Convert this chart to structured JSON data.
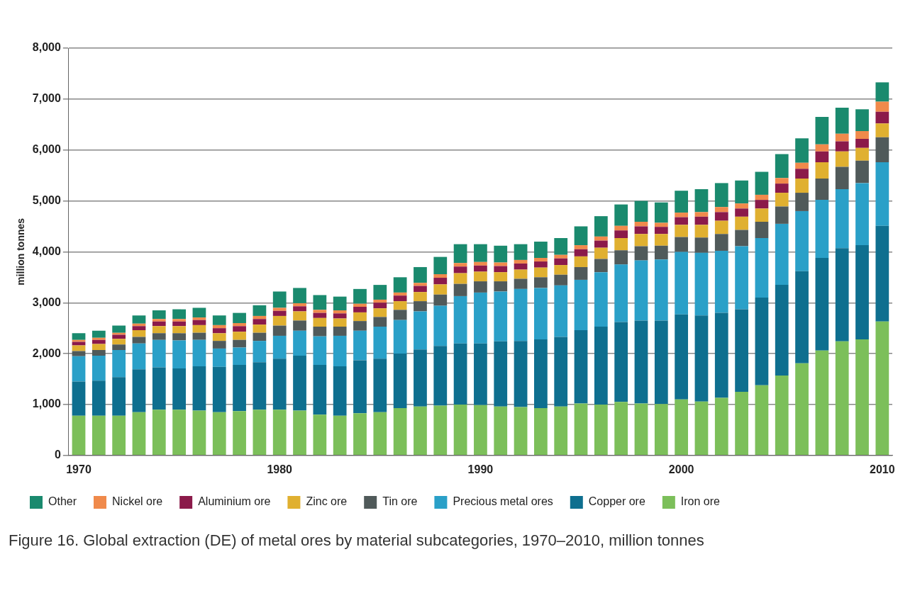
{
  "chart_data": {
    "type": "bar",
    "stacked": true,
    "ylabel": "million tonnes",
    "categories": [
      "1970",
      null,
      null,
      null,
      null,
      null,
      null,
      null,
      null,
      null,
      "1980",
      null,
      null,
      null,
      null,
      null,
      null,
      null,
      null,
      null,
      "1990",
      null,
      null,
      null,
      null,
      null,
      null,
      null,
      null,
      null,
      "2000",
      null,
      null,
      null,
      null,
      null,
      null,
      null,
      null,
      null,
      "2010"
    ],
    "ylim": [
      0,
      8000
    ],
    "yticks": [
      {
        "value": 0,
        "label": "0"
      },
      {
        "value": 1000,
        "label": "1,000"
      },
      {
        "value": 2000,
        "label": "2,000"
      },
      {
        "value": 3000,
        "label": "3,000"
      },
      {
        "value": 4000,
        "label": "4,000"
      },
      {
        "value": 5000,
        "label": "5,000"
      },
      {
        "value": 6000,
        "label": "6,000"
      },
      {
        "value": 7000,
        "label": "7,000"
      },
      {
        "value": 8000,
        "label": "8,000"
      }
    ],
    "grid": "y",
    "legend": "bottom",
    "series": [
      {
        "name": "Iron ore",
        "color": "#7cbf5a",
        "values": [
          780,
          780,
          780,
          850,
          900,
          900,
          880,
          850,
          870,
          900,
          900,
          880,
          800,
          780,
          830,
          850,
          930,
          960,
          980,
          1000,
          990,
          960,
          950,
          930,
          960,
          1020,
          1000,
          1050,
          1020,
          1010,
          1100,
          1060,
          1130,
          1250,
          1380,
          1570,
          1810,
          2060,
          2240,
          2280,
          2630
        ]
      },
      {
        "name": "Copper ore",
        "color": "#0e6f8f",
        "values": [
          670,
          690,
          760,
          840,
          830,
          810,
          870,
          890,
          910,
          930,
          1000,
          1080,
          980,
          970,
          1040,
          1050,
          1070,
          1120,
          1170,
          1200,
          1210,
          1280,
          1300,
          1350,
          1370,
          1440,
          1530,
          1570,
          1630,
          1640,
          1670,
          1690,
          1670,
          1620,
          1720,
          1780,
          1810,
          1820,
          1830,
          1850,
          1880
        ]
      },
      {
        "name": "Precious metal ores",
        "color": "#2aa0c8",
        "values": [
          500,
          490,
          530,
          510,
          540,
          550,
          520,
          360,
          340,
          420,
          450,
          490,
          560,
          600,
          580,
          630,
          660,
          750,
          790,
          930,
          1000,
          980,
          1020,
          1010,
          1010,
          990,
          1070,
          1130,
          1180,
          1200,
          1230,
          1230,
          1220,
          1240,
          1170,
          1200,
          1180,
          1140,
          1160,
          1220,
          1250
        ]
      },
      {
        "name": "Tin ore",
        "color": "#505a5a",
        "values": [
          100,
          110,
          110,
          130,
          130,
          140,
          140,
          150,
          150,
          160,
          200,
          200,
          190,
          180,
          190,
          190,
          200,
          200,
          220,
          240,
          220,
          200,
          200,
          210,
          210,
          250,
          260,
          280,
          280,
          270,
          290,
          300,
          330,
          320,
          320,
          340,
          360,
          420,
          440,
          440,
          490
        ]
      },
      {
        "name": "Zinc ore",
        "color": "#e0b030",
        "values": [
          110,
          120,
          110,
          130,
          140,
          140,
          150,
          150,
          160,
          160,
          190,
          180,
          170,
          160,
          170,
          170,
          170,
          180,
          200,
          210,
          190,
          180,
          180,
          190,
          190,
          210,
          220,
          240,
          240,
          230,
          240,
          250,
          260,
          260,
          260,
          270,
          280,
          320,
          300,
          250,
          270
        ]
      },
      {
        "name": "Aluminium ore",
        "color": "#8b1a4a",
        "values": [
          70,
          80,
          80,
          80,
          90,
          90,
          100,
          100,
          110,
          110,
          100,
          100,
          100,
          100,
          110,
          110,
          110,
          120,
          130,
          130,
          120,
          120,
          120,
          120,
          130,
          140,
          140,
          150,
          150,
          140,
          150,
          160,
          170,
          160,
          170,
          180,
          190,
          210,
          200,
          180,
          230
        ]
      },
      {
        "name": "Nickel ore",
        "color": "#f08a4b",
        "values": [
          40,
          40,
          40,
          50,
          50,
          50,
          50,
          60,
          60,
          60,
          60,
          60,
          60,
          60,
          60,
          60,
          60,
          60,
          70,
          70,
          70,
          70,
          70,
          70,
          70,
          80,
          80,
          90,
          90,
          80,
          90,
          90,
          100,
          100,
          100,
          110,
          120,
          140,
          150,
          150,
          200
        ]
      },
      {
        "name": "Other",
        "color": "#1a8a6e",
        "values": [
          130,
          140,
          140,
          160,
          170,
          190,
          190,
          190,
          200,
          210,
          320,
          300,
          290,
          270,
          290,
          290,
          300,
          310,
          340,
          370,
          350,
          330,
          310,
          320,
          330,
          370,
          400,
          420,
          410,
          400,
          430,
          450,
          470,
          450,
          450,
          470,
          480,
          540,
          510,
          430,
          380
        ]
      }
    ],
    "annotations": [
      "Figure 16. Global extraction (DE) of metal ores by material subcategories, 1970–2010, million tonnes"
    ]
  }
}
